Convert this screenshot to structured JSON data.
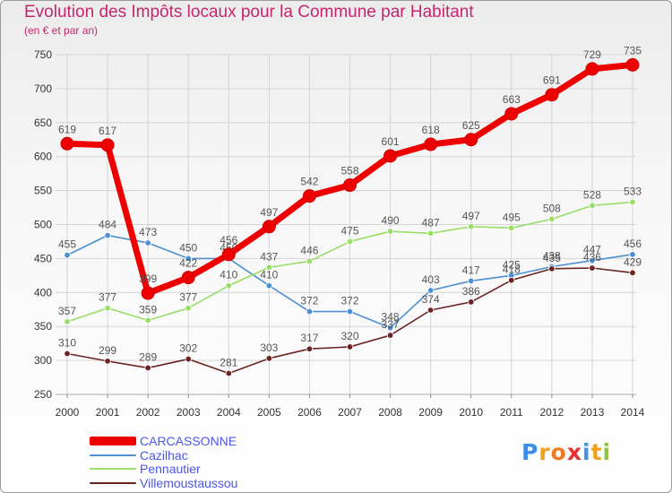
{
  "header": {
    "title": "Evolution des Impôts locaux pour la Commune par Habitant",
    "subtitle": "(en € et par an)"
  },
  "colors": {
    "title": "#c8246e",
    "grid": "#d4d4d4",
    "axis_text": "#333333",
    "value_label": "#555555"
  },
  "chart_data": {
    "type": "line",
    "title": "Evolution des Impôts locaux pour la Commune par Habitant",
    "subtitle": "(en € et par an)",
    "x": [
      2000,
      2001,
      2002,
      2003,
      2004,
      2005,
      2006,
      2007,
      2008,
      2009,
      2010,
      2011,
      2012,
      2013,
      2014
    ],
    "ylim": [
      250,
      750
    ],
    "yticks": [
      250,
      300,
      350,
      400,
      450,
      500,
      550,
      600,
      650,
      700,
      750
    ],
    "grid": true,
    "legend": "bottom-left",
    "series": [
      {
        "name": "CARCASSONNE",
        "color": "#ee0000",
        "values": [
          619,
          617,
          399,
          422,
          456,
          497,
          542,
          558,
          601,
          618,
          625,
          663,
          691,
          729,
          735
        ]
      },
      {
        "name": "Cazilhac",
        "color": "#4d8fd0",
        "values": [
          455,
          484,
          473,
          450,
          450,
          410,
          372,
          372,
          348,
          403,
          417,
          425,
          438,
          447,
          456
        ]
      },
      {
        "name": "Pennautier",
        "color": "#99dd66",
        "values": [
          357,
          377,
          359,
          377,
          410,
          437,
          446,
          475,
          490,
          487,
          497,
          495,
          508,
          528,
          533
        ]
      },
      {
        "name": "Villemoustaussou",
        "color": "#6b2323",
        "values": [
          310,
          299,
          289,
          302,
          281,
          303,
          317,
          320,
          337,
          374,
          386,
          418,
          435,
          436,
          429
        ]
      }
    ]
  },
  "legend": {
    "items": [
      {
        "label": "CARCASSONNE",
        "color": "#ee0000",
        "text_color": "#4a56e8"
      },
      {
        "label": "Cazilhac",
        "color": "#4d8fd0",
        "text_color": "#4a56e8"
      },
      {
        "label": "Pennautier",
        "color": "#99dd66",
        "text_color": "#4a56e8"
      },
      {
        "label": "Villemoustaussou",
        "color": "#6b2323",
        "text_color": "#4a56e8"
      }
    ]
  },
  "logo": {
    "letters": [
      "P",
      "r",
      "o",
      "x",
      "i",
      "t",
      "i"
    ],
    "colors": [
      "#3a8ee6",
      "#f2a020",
      "#f07a20",
      "#e83030",
      "#4a90d9",
      "#f2a020",
      "#8ac640"
    ]
  }
}
